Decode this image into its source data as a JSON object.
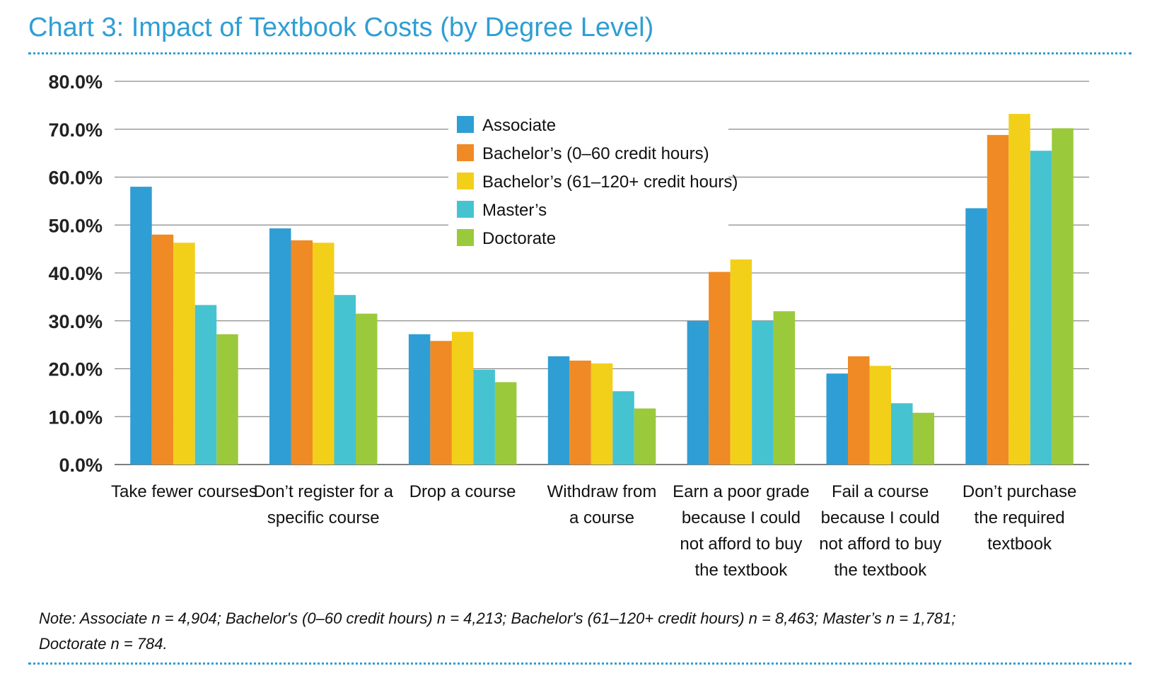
{
  "chart_data": {
    "type": "bar",
    "title": "Chart 3: Impact of Textbook Costs (by Degree Level)",
    "categories": [
      [
        "Take fewer courses"
      ],
      [
        "Don’t register for a",
        "specific course"
      ],
      [
        "Drop a course"
      ],
      [
        "Withdraw from",
        "a course"
      ],
      [
        "Earn a poor grade",
        "because I could",
        "not afford to buy",
        "the textbook"
      ],
      [
        "Fail a course",
        "because I could",
        "not afford to buy",
        "the textbook"
      ],
      [
        "Don’t purchase",
        "the required",
        "textbook"
      ]
    ],
    "series": [
      {
        "name": "Associate",
        "color": "#2f9ed4",
        "values": [
          58.0,
          49.3,
          27.2,
          22.6,
          30.0,
          19.0,
          53.5
        ]
      },
      {
        "name": "Bachelor’s (0–60 credit hours)",
        "color": "#f08a24",
        "values": [
          48.0,
          46.8,
          25.8,
          21.7,
          40.2,
          22.6,
          68.8
        ]
      },
      {
        "name": "Bachelor’s (61–120+ credit hours)",
        "color": "#f2d019",
        "values": [
          46.3,
          46.3,
          27.7,
          21.1,
          42.8,
          20.6,
          73.2
        ]
      },
      {
        "name": "Master’s",
        "color": "#45c3d1",
        "values": [
          33.3,
          35.4,
          19.8,
          15.3,
          30.0,
          12.8,
          65.5
        ]
      },
      {
        "name": "Doctorate",
        "color": "#9bc93c",
        "values": [
          27.2,
          31.5,
          17.2,
          11.7,
          32.0,
          10.8,
          70.2
        ]
      }
    ],
    "yticks": [
      "0.0%",
      "10.0%",
      "20.0%",
      "30.0%",
      "40.0%",
      "50.0%",
      "60.0%",
      "70.0%",
      "80.0%"
    ],
    "ylim": [
      0,
      80
    ],
    "xlabel": "",
    "ylabel": "",
    "grid": true,
    "legend": "top-center"
  },
  "note": {
    "lines": [
      "Note: Associate n = 4,904; Bachelor's (0–60 credit hours) n = 4,213; Bachelor's (61–120+ credit hours) n = 8,463; Master’s n = 1,781;",
      "Doctorate n = 784."
    ]
  }
}
